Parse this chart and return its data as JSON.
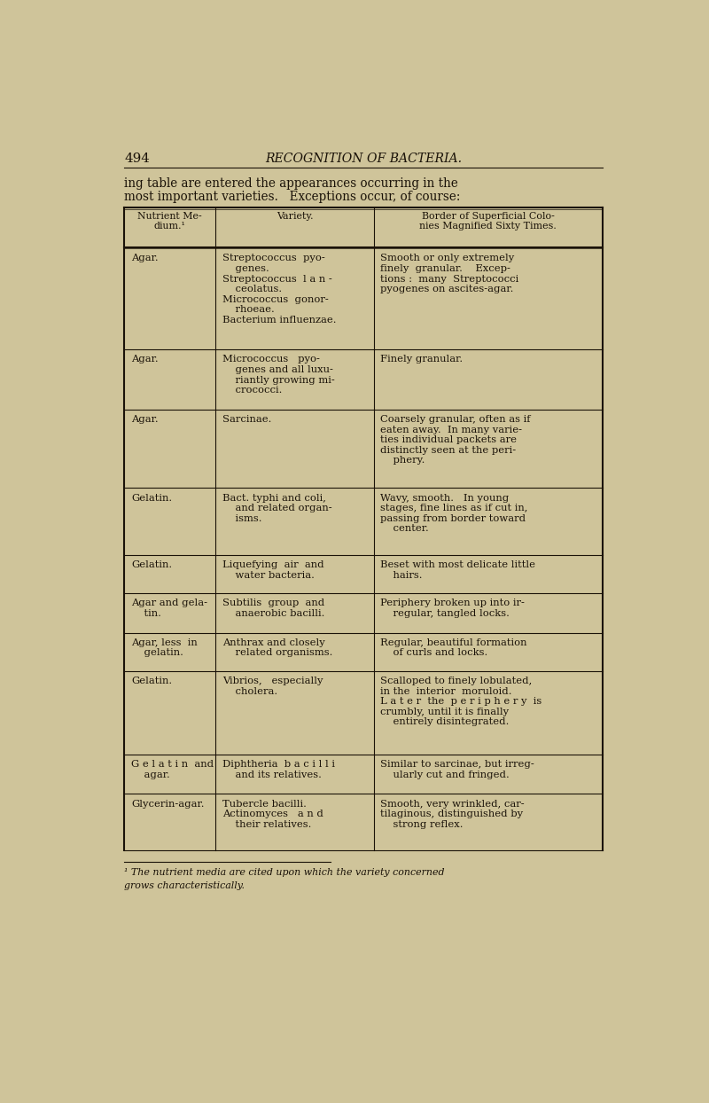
{
  "page_number": "494",
  "page_title": "RECOGNITION OF BACTERIA.",
  "intro_text_line1": "ing table are entered the appearances occurring in the",
  "intro_text_line2": "most important varieties.   Exceptions occur, of course:",
  "bg_color": "#cfc49a",
  "text_color": "#1a1208",
  "header_col1": "Nutrient Me-\ndium.¹",
  "header_col2": "Variety.",
  "header_col3": "Border of Superficial Colo-\nnies Magnified Sixty Times.",
  "footnote_line1": "¹ The nutrient media are cited upon which the variety concerned",
  "footnote_line2": "grows characteristically.",
  "rows": [
    {
      "col1": "Agar.",
      "col2": "Streptococcus  pyo-\n    genes.\nStreptococcus  l a n -\n    ceolatus.\nMicrococcus  gonor-\n    rhoeae.\nBacterium influenzae.",
      "col3": "Smooth or only extremely\nfinely  granular.    Excep-\ntions :  many  Streptococci\npyogenes on ascites-agar."
    },
    {
      "col1": "Agar.",
      "col2": "Micrococcus   pyo-\n    genes and all luxu-\n    riantly growing mi-\n    crococci.",
      "col3": "Finely granular."
    },
    {
      "col1": "Agar.",
      "col2": "Sarcinae.",
      "col3": "Coarsely granular, often as if\neaten away.  In many varie-\nties individual packets are\ndistinctly seen at the peri-\n    phery."
    },
    {
      "col1": "Gelatin.",
      "col2": "Bact. typhi and coli,\n    and related organ-\n    isms.",
      "col3": "Wavy, smooth.   In young\nstages, fine lines as if cut in,\npassing from border toward\n    center."
    },
    {
      "col1": "Gelatin.",
      "col2": "Liquefying  air  and\n    water bacteria.",
      "col3": "Beset with most delicate little\n    hairs."
    },
    {
      "col1": "Agar and gela-\n    tin.",
      "col2": "Subtilis  group  and\n    anaerobic bacilli.",
      "col3": "Periphery broken up into ir-\n    regular, tangled locks."
    },
    {
      "col1": "Agar, less  in\n    gelatin.",
      "col2": "Anthrax and closely\n    related organisms.",
      "col3": "Regular, beautiful formation\n    of curls and locks."
    },
    {
      "col1": "Gelatin.",
      "col2": "Vibrios,   especially\n    cholera.",
      "col3": "Scalloped to finely lobulated,\nin the  interior  moruloid.\nL a t e r  the  p e r i p h e r y  is\ncrumbly, until it is finally\n    entirely disintegrated."
    },
    {
      "col1": "G e l a t i n  and\n    agar.",
      "col2": "Diphtheria  b a c i l l i\n    and its relatives.",
      "col3": "Similar to sarcinae, but irreg-\n    ularly cut and fringed."
    },
    {
      "col1": "Glycerin-agar.",
      "col2": "Tubercle bacilli.\nActinomyces   a n d\n    their relatives.",
      "col3": "Smooth, very wrinkled, car-\ntilaginous, distinguished by\n    strong reflex."
    }
  ]
}
